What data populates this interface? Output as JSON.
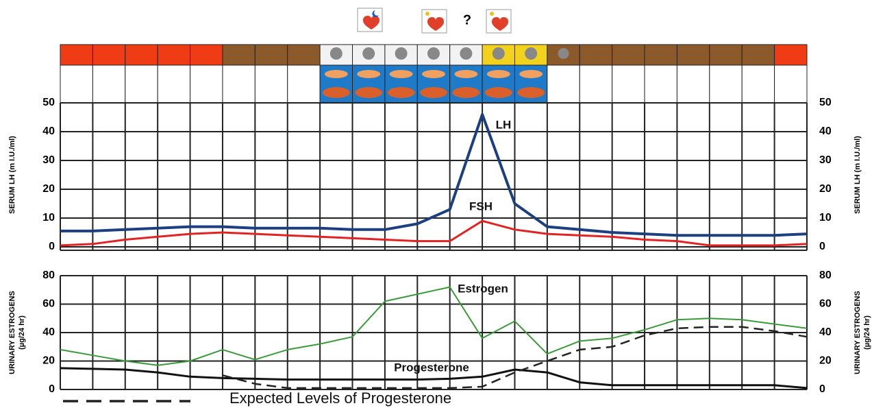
{
  "header": {
    "annotation": "?"
  },
  "chart_data": [
    {
      "type": "line",
      "y_label": "SERUM LH (m I.U./ml)",
      "categories": [
        null,
        null,
        null,
        null,
        null,
        null,
        null,
        null,
        null,
        null,
        null,
        null,
        null,
        null,
        null,
        null,
        null,
        null,
        null,
        null,
        null,
        null,
        null,
        null
      ],
      "series": [
        {
          "name": "LH",
          "color": "#1c3f80",
          "width": 4,
          "values": [
            5.5,
            5.5,
            6,
            6.5,
            7,
            7,
            6.5,
            6.5,
            6.5,
            6,
            6,
            8,
            13,
            46,
            15,
            7,
            6,
            5,
            4.5,
            4,
            4,
            4,
            4,
            4.5
          ]
        },
        {
          "name": "FSH",
          "color": "#e02424",
          "width": 3,
          "values": [
            0.5,
            1,
            2.5,
            3.5,
            4.5,
            5,
            4.5,
            4,
            3.5,
            3,
            2.5,
            2,
            2,
            9,
            6,
            4.5,
            4,
            3.5,
            2.5,
            2,
            0.5,
            0.5,
            0.5,
            1
          ]
        }
      ],
      "ylim": [
        0,
        50
      ],
      "yticks": [
        0,
        10,
        20,
        30,
        40,
        50
      ],
      "grid": true
    },
    {
      "type": "line",
      "y_label": [
        "URINARY ESTROGENS",
        "(µg/24 hr)"
      ],
      "categories": [
        null,
        null,
        null,
        null,
        null,
        null,
        null,
        null,
        null,
        null,
        null,
        null,
        null,
        null,
        null,
        null,
        null,
        null,
        null,
        null,
        null,
        null,
        null,
        null
      ],
      "series": [
        {
          "name": "Estrogen",
          "color": "#3a9a3a",
          "width": 2,
          "values": [
            28,
            24,
            20,
            17,
            20,
            28,
            21,
            28,
            32,
            37,
            62,
            67,
            72,
            36,
            48,
            25,
            34,
            36,
            42,
            49,
            50,
            49,
            46,
            43
          ]
        },
        {
          "name": "Progesterone",
          "color": "#111111",
          "width": 3,
          "values": [
            15,
            14.5,
            14,
            12,
            9,
            8,
            7.5,
            7,
            7,
            7,
            7,
            7,
            7.5,
            9,
            14,
            12,
            5,
            3,
            3,
            3,
            3,
            3,
            3,
            1
          ]
        },
        {
          "name": "Expected Levels of Progesterone",
          "color": "#222222",
          "width": 2.5,
          "dashed": true,
          "values": [
            null,
            null,
            null,
            null,
            null,
            10,
            4,
            1,
            1,
            1,
            1,
            1,
            1,
            2,
            12,
            20,
            28,
            30,
            38,
            43,
            44,
            44,
            41,
            37
          ]
        }
      ],
      "ylim": [
        0,
        80
      ],
      "yticks": [
        0,
        20,
        40,
        60,
        80
      ],
      "grid": true
    }
  ]
}
